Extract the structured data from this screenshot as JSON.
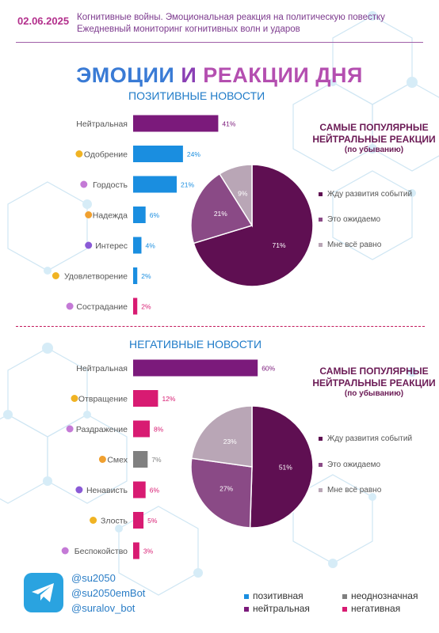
{
  "header": {
    "date": "02.06.2025",
    "subtitle_line1": "Когнитивные войны. Эмоциональная реакция на политическую повестку",
    "subtitle_line2": "Ежедневный мониторинг когнитивных волн и ударов"
  },
  "title": {
    "word1": "ЭМОЦИИ",
    "word2": "И",
    "word3": "РЕАКЦИИ ДНЯ"
  },
  "sections": {
    "positive_title": "ПОЗИТИВНЫЕ НОВОСТИ",
    "negative_title": "НЕГАТИВНЫЕ НОВОСТИ"
  },
  "popular": {
    "title_line1": "САМЫЕ ПОПУЛЯРНЫЕ",
    "title_line2": "НЕЙТРАЛЬНЫЕ РЕАКЦИИ",
    "subtitle": "(по убыванию)",
    "legend": [
      "Жду развития событий",
      "Это ожидаемо",
      "Мне всё равно"
    ]
  },
  "colors": {
    "positive": "#1a8ee0",
    "neutral": "#7b1a7b",
    "ambiguous": "#808080",
    "negative": "#d81b72",
    "pie_main": "#5f0f52",
    "pie_second": "#8a4a86",
    "pie_third": "#b9a6b6"
  },
  "chart_data": [
    {
      "type": "bar",
      "orientation": "horizontal",
      "title": "ПОЗИТИВНЫЕ НОВОСТИ",
      "categories": [
        "Нейтральная",
        "Одобрение",
        "Гордость",
        "Надежда",
        "Интерес",
        "Удовлетворение",
        "Сострадание"
      ],
      "values": [
        41,
        24,
        21,
        6,
        4,
        2,
        2
      ],
      "labels": [
        "41%",
        "24%",
        "21%",
        "6%",
        "4%",
        "2%",
        "2%"
      ],
      "kinds": [
        "neutral",
        "positive",
        "positive",
        "positive",
        "positive",
        "positive",
        "negative"
      ],
      "icons": [
        "",
        "approval-emoji-icon",
        "medal-emoji-icon",
        "hope-emoji-icon",
        "interest-emoji-icon",
        "satisfaction-emoji-icon",
        "compassion-emoji-icon"
      ]
    },
    {
      "type": "pie",
      "title": "САМЫЕ ПОПУЛЯРНЫЕ НЕЙТРАЛЬНЫЕ РЕАКЦИИ",
      "categories": [
        "Жду развития событий",
        "Это ожидаемо",
        "Мне всё равно"
      ],
      "values": [
        71,
        21,
        9
      ],
      "labels": [
        "71%",
        "21%",
        "9%"
      ]
    },
    {
      "type": "bar",
      "orientation": "horizontal",
      "title": "НЕГАТИВНЫЕ НОВОСТИ",
      "categories": [
        "Нейтральная",
        "Отвращение",
        "Раздражение",
        "Смех",
        "Ненависть",
        "Злость",
        "Беспокойство"
      ],
      "values": [
        60,
        12,
        8,
        7,
        6,
        5,
        3
      ],
      "labels": [
        "60%",
        "12%",
        "8%",
        "7%",
        "6%",
        "5%",
        "3%"
      ],
      "kinds": [
        "neutral",
        "negative",
        "negative",
        "ambiguous",
        "negative",
        "negative",
        "negative"
      ],
      "icons": [
        "",
        "disgust-emoji-icon",
        "irritation-emoji-icon",
        "laughter-emoji-icon",
        "hatred-emoji-icon",
        "anger-emoji-icon",
        "anxiety-emoji-icon"
      ]
    },
    {
      "type": "pie",
      "title": "САМЫЕ ПОПУЛЯРНЫЕ НЕЙТРАЛЬНЫЕ РЕАКЦИИ",
      "categories": [
        "Жду развития событий",
        "Это ожидаемо",
        "Мне всё равно"
      ],
      "values": [
        51,
        27,
        23
      ],
      "labels": [
        "51%",
        "27%",
        "23%"
      ]
    }
  ],
  "footer": {
    "handles": [
      "@su2050",
      "@su2050emBot",
      "@suralov_bot"
    ],
    "legend": {
      "positive": "позитивная",
      "ambiguous": "неоднозначная",
      "neutral": "нейтральная",
      "negative": "негативная"
    }
  }
}
